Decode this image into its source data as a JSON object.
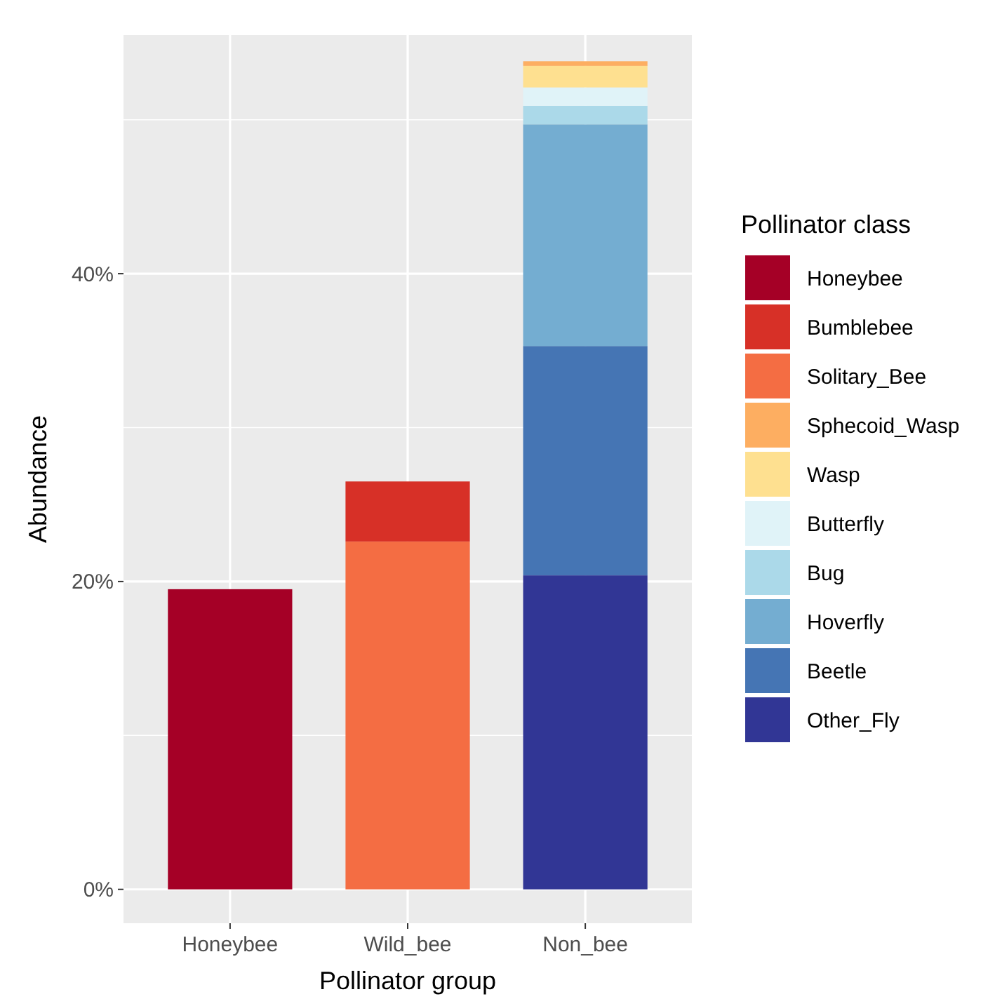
{
  "chart_data": {
    "type": "bar",
    "xlabel": "Pollinator group",
    "ylabel": "Abundance",
    "legend_title": "Pollinator class",
    "categories": [
      "Honeybee",
      "Wild_bee",
      "Non_bee"
    ],
    "stacked": true,
    "grid": true,
    "legend": "right",
    "ylim": [
      -2.2,
      55.5
    ],
    "yticks": [
      {
        "value": 0,
        "label": "0%"
      },
      {
        "value": 20,
        "label": "20%"
      },
      {
        "value": 40,
        "label": "40%"
      }
    ],
    "series": [
      {
        "name": "Other_Fly",
        "color": "#313695",
        "values": [
          null,
          null,
          20.4
        ]
      },
      {
        "name": "Beetle",
        "color": "#4575b4",
        "values": [
          null,
          null,
          14.9
        ]
      },
      {
        "name": "Hoverfly",
        "color": "#74add1",
        "values": [
          null,
          null,
          14.4
        ]
      },
      {
        "name": "Bug",
        "color": "#abd9e9",
        "values": [
          null,
          null,
          1.2
        ]
      },
      {
        "name": "Butterfly",
        "color": "#e0f3f8",
        "values": [
          null,
          null,
          1.2
        ]
      },
      {
        "name": "Wasp",
        "color": "#fee090",
        "values": [
          null,
          null,
          1.4
        ]
      },
      {
        "name": "Sphecoid_Wasp",
        "color": "#fdae61",
        "values": [
          null,
          null,
          0.3
        ]
      },
      {
        "name": "Solitary_Bee",
        "color": "#f46d43",
        "values": [
          null,
          22.6,
          null
        ]
      },
      {
        "name": "Bumblebee",
        "color": "#d73027",
        "values": [
          null,
          3.9,
          null
        ]
      },
      {
        "name": "Honeybee",
        "color": "#a50026",
        "values": [
          19.5,
          null,
          null
        ]
      }
    ]
  }
}
